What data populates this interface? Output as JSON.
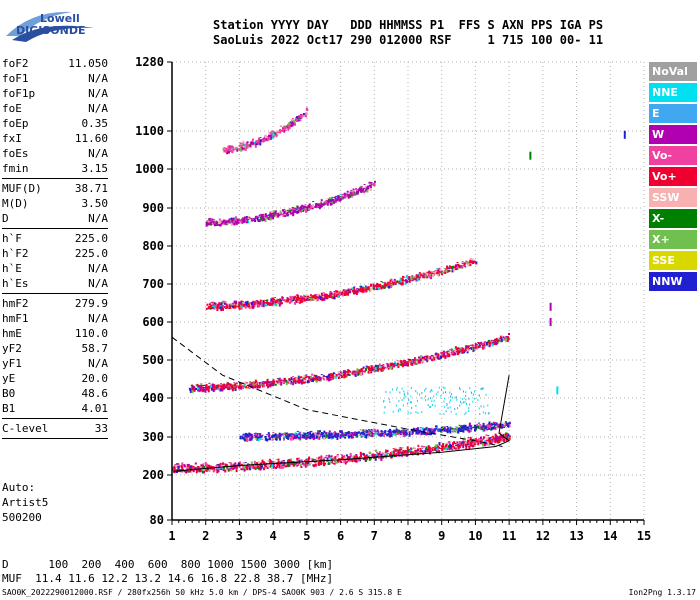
{
  "logo": {
    "line1": "Lowell",
    "line2": "DIGISONDE"
  },
  "header": {
    "line1": "Station YYYY DAY   DDD HHMMSS P1  FFS S AXN PPS IGA PS",
    "line2": "SaoLuis 2022 Oct17 290 012000 RSF     1 715 100 00- 11"
  },
  "params": [
    {
      "label": "foF2",
      "value": "11.050"
    },
    {
      "label": "foF1",
      "value": "N/A"
    },
    {
      "label": "foF1p",
      "value": "N/A"
    },
    {
      "label": "foE",
      "value": "N/A"
    },
    {
      "label": "foEp",
      "value": "0.35"
    },
    {
      "label": "fxI",
      "value": "11.60"
    },
    {
      "label": "foEs",
      "value": "N/A"
    },
    {
      "label": "fmin",
      "value": "3.15"
    },
    {
      "sep": true
    },
    {
      "label": "MUF(D)",
      "value": "38.71"
    },
    {
      "label": "M(D)",
      "value": "3.50"
    },
    {
      "label": "D",
      "value": "N/A"
    },
    {
      "sep": true
    },
    {
      "label": "h`F",
      "value": "225.0"
    },
    {
      "label": "h`F2",
      "value": "225.0"
    },
    {
      "label": "h`E",
      "value": "N/A"
    },
    {
      "label": "h`Es",
      "value": "N/A"
    },
    {
      "sep": true
    },
    {
      "label": "hmF2",
      "value": "279.9"
    },
    {
      "label": "hmF1",
      "value": "N/A"
    },
    {
      "label": "hmE",
      "value": "110.0"
    },
    {
      "label": "yF2",
      "value": "58.7"
    },
    {
      "label": "yF1",
      "value": "N/A"
    },
    {
      "label": "yE",
      "value": "20.0"
    },
    {
      "label": "B0",
      "value": "48.6"
    },
    {
      "label": "B1",
      "value": "4.01"
    },
    {
      "sep": true
    },
    {
      "label": "C-level",
      "value": "33"
    },
    {
      "sep": true
    }
  ],
  "auto": {
    "line1": "Auto:",
    "line2": "Artist5",
    "line3": "500200"
  },
  "legend": [
    {
      "label": "NoVal",
      "color": "#a0a0a0"
    },
    {
      "label": "NNE",
      "color": "#00e0f0"
    },
    {
      "label": "E",
      "color": "#40a8f0"
    },
    {
      "label": "W",
      "color": "#b000b0"
    },
    {
      "label": "Vo-",
      "color": "#f040a0"
    },
    {
      "label": "Vo+",
      "color": "#f00030"
    },
    {
      "label": "SSW",
      "color": "#f8b0b0"
    },
    {
      "label": "X-",
      "color": "#008000"
    },
    {
      "label": "X+",
      "color": "#70c050"
    },
    {
      "label": "SSE",
      "color": "#d8d800"
    },
    {
      "label": "NNW",
      "color": "#2020d0"
    }
  ],
  "footer": {
    "line1": "D      100  200  400  600  800 1000 1500 3000 [km]",
    "line2": "MUF  11.4 11.6 12.2 13.2 14.6 16.8 22.8 38.7 [MHz]",
    "line3": "SAO0K_2022290012000.RSF / 280fx256h 50 kHz 5.0 km / DPS-4 SAO0K 903 / 2.6 S 315.8 E",
    "line4": "Ion2Png 1.3.17"
  },
  "chart_data": {
    "type": "scatter",
    "x_ticks": [
      "1",
      "2",
      "3",
      "4",
      "5",
      "6",
      "7",
      "8",
      "9",
      "10",
      "11",
      "12",
      "13",
      "14",
      "15"
    ],
    "y_ticks": [
      "80",
      "200",
      "300",
      "400",
      "500",
      "600",
      "700",
      "800",
      "900",
      "1000",
      "1100",
      "1280"
    ],
    "xlim": [
      1,
      15
    ],
    "ylim": [
      80,
      1280
    ],
    "y_scale": "ionogram-nonlinear",
    "grid": true,
    "legend_position": "right",
    "traces": [
      {
        "name": "O1",
        "x_range": [
          1.0,
          11.0
        ],
        "h_start": 215,
        "h_end": 300,
        "color": "#f00030"
      },
      {
        "name": "F-upper",
        "x_range": [
          3.0,
          11.0
        ],
        "h_start": 300,
        "h_end": 330,
        "color": "#2020d0"
      },
      {
        "name": "2F",
        "x_range": [
          1.5,
          11.0
        ],
        "h_start": 425,
        "h_end": 560,
        "color": "#f00030"
      },
      {
        "name": "3F",
        "x_range": [
          2.0,
          10.0
        ],
        "h_start": 640,
        "h_end": 760,
        "color": "#f00030"
      },
      {
        "name": "4F",
        "x_range": [
          2.0,
          7.0
        ],
        "h_start": 860,
        "h_end": 960,
        "color": "#b000b0"
      },
      {
        "name": "5F",
        "x_range": [
          2.5,
          5.0
        ],
        "h_start": 1050,
        "h_end": 1150,
        "color": "#f040a0"
      }
    ],
    "profile_curves": [
      {
        "style": "solid",
        "points": [
          [
            1.05,
            210
          ],
          [
            3,
            225
          ],
          [
            6,
            240
          ],
          [
            9,
            260
          ],
          [
            10.6,
            275
          ],
          [
            11,
            290
          ],
          [
            10.7,
            310
          ],
          [
            10.8,
            360
          ],
          [
            11,
            460
          ]
        ]
      },
      {
        "style": "dashed",
        "points": [
          [
            1.0,
            560
          ],
          [
            2.5,
            460
          ],
          [
            5,
            370
          ],
          [
            8,
            320
          ],
          [
            10,
            290
          ],
          [
            10.8,
            275
          ]
        ]
      }
    ],
    "isolated_marks": [
      {
        "x": 12.2,
        "h": 640,
        "color": "#b000b0"
      },
      {
        "x": 12.2,
        "h": 600,
        "color": "#b000b0"
      },
      {
        "x": 14.4,
        "h": 1090,
        "color": "#2020d0"
      },
      {
        "x": 11.6,
        "h": 1035,
        "color": "#008000"
      },
      {
        "x": 12.4,
        "h": 420,
        "color": "#00e0f0"
      }
    ]
  }
}
